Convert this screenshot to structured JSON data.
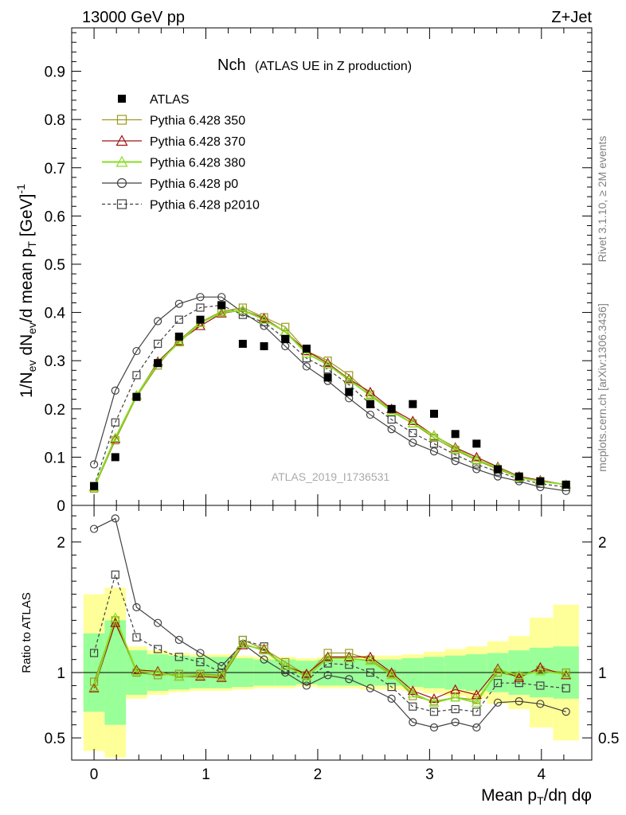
{
  "header": {
    "left": "13000 GeV pp",
    "right": "Z+Jet"
  },
  "side_labels": {
    "rivet": "Rivet 3.1.10, ≥ 2M events",
    "mcplots": "mcplots.cern.ch [arXiv:1306.3436]"
  },
  "chart_data": {
    "type": "line",
    "title": "Nch",
    "subtitle": "(ATLAS UE in Z production)",
    "watermark": "ATLAS_2019_I1736531",
    "xlabel": "Mean p_T/dη dφ",
    "ylabel": "1/N_ev dN_ev/d mean p_T [GeV]^-1",
    "ratio_ylabel": "Ratio to ATLAS",
    "xlim": [
      -0.2,
      4.45
    ],
    "ylim": [
      0,
      0.99
    ],
    "ratio_ylim": [
      0.33,
      2.28
    ],
    "x_ticks": [
      0,
      1,
      2,
      3,
      4
    ],
    "y_ticks": [
      0,
      0.1,
      0.2,
      0.3,
      0.4,
      0.5,
      0.6,
      0.7,
      0.8,
      0.9
    ],
    "y_tick_labels": [
      "0",
      "0.1",
      "0.2",
      "0.3",
      "0.4",
      "0.5",
      "0.6",
      "0.7",
      "0.8",
      "0.9"
    ],
    "ratio_ticks": [
      0.5,
      1,
      2
    ],
    "ratio_tick_labels": [
      "0.5",
      "1",
      "2"
    ],
    "legend_placement": "top-left",
    "x": [
      0.0,
      0.19,
      0.38,
      0.57,
      0.76,
      0.95,
      1.14,
      1.33,
      1.52,
      1.71,
      1.9,
      2.09,
      2.28,
      2.47,
      2.66,
      2.85,
      3.04,
      3.23,
      3.42,
      3.61,
      3.8,
      3.99,
      4.22
    ],
    "data": {
      "name": "ATLAS",
      "values": [
        0.04,
        0.1,
        0.225,
        0.295,
        0.35,
        0.385,
        0.415,
        0.335,
        0.33,
        0.345,
        0.325,
        0.265,
        0.235,
        0.21,
        0.2,
        0.21,
        0.19,
        0.148,
        0.128,
        0.075,
        0.06,
        0.05,
        0.043
      ]
    },
    "band": {
      "inner": [
        0.3,
        0.4,
        0.17,
        0.14,
        0.13,
        0.12,
        0.12,
        0.11,
        0.1,
        0.1,
        0.09,
        0.1,
        0.1,
        0.1,
        0.1,
        0.11,
        0.12,
        0.13,
        0.14,
        0.15,
        0.17,
        0.19,
        0.2
      ],
      "outer": [
        0.6,
        0.65,
        0.2,
        0.17,
        0.15,
        0.14,
        0.14,
        0.13,
        0.12,
        0.12,
        0.11,
        0.12,
        0.12,
        0.13,
        0.13,
        0.14,
        0.16,
        0.18,
        0.2,
        0.24,
        0.28,
        0.42,
        0.52
      ]
    },
    "series": [
      {
        "name": "Pythia 6.428 350",
        "color": "#9a9a20",
        "marker": "square-open",
        "dashed": false,
        "values": [
          0.035,
          0.135,
          0.225,
          0.29,
          0.342,
          0.38,
          0.402,
          0.41,
          0.39,
          0.37,
          0.32,
          0.3,
          0.27,
          0.23,
          0.198,
          0.17,
          0.14,
          0.115,
          0.093,
          0.075,
          0.058,
          0.05,
          0.043
        ],
        "ratio": [
          0.93,
          1.4,
          1.0,
          0.98,
          0.99,
          0.99,
          0.98,
          1.25,
          1.18,
          1.08,
          0.98,
          1.15,
          1.15,
          1.1,
          0.99,
          0.82,
          0.78,
          0.81,
          0.79,
          1.0,
          0.97,
          1.02,
          1.0
        ]
      },
      {
        "name": "Pythia 6.428 370",
        "color": "#a01010",
        "marker": "triangle-open",
        "dashed": false,
        "values": [
          0.038,
          0.138,
          0.228,
          0.298,
          0.34,
          0.372,
          0.398,
          0.405,
          0.388,
          0.36,
          0.32,
          0.295,
          0.262,
          0.235,
          0.2,
          0.175,
          0.145,
          0.12,
          0.1,
          0.08,
          0.06,
          0.052,
          0.043
        ],
        "ratio": [
          0.88,
          1.38,
          1.02,
          1.01,
          0.97,
          0.97,
          0.96,
          1.21,
          1.18,
          1.05,
          0.99,
          1.12,
          1.12,
          1.12,
          1.0,
          0.86,
          0.8,
          0.87,
          0.83,
          1.03,
          0.96,
          1.04,
          0.98
        ]
      },
      {
        "name": "Pythia 6.428 380",
        "color": "#88dd22",
        "marker": "triangle-open",
        "dashed": false,
        "values": [
          0.038,
          0.14,
          0.228,
          0.295,
          0.338,
          0.378,
          0.4,
          0.405,
          0.385,
          0.36,
          0.315,
          0.292,
          0.26,
          0.228,
          0.195,
          0.17,
          0.145,
          0.118,
          0.095,
          0.078,
          0.058,
          0.05,
          0.043
        ],
        "ratio": [
          0.89,
          1.42,
          1.01,
          1.0,
          0.97,
          0.98,
          0.97,
          1.22,
          1.17,
          1.05,
          0.97,
          1.11,
          1.11,
          1.09,
          0.98,
          0.84,
          0.77,
          0.81,
          0.77,
          1.02,
          0.98,
          1.01,
          0.99
        ]
      },
      {
        "name": "Pythia 6.428 p0",
        "color": "#404040",
        "marker": "circle-open",
        "dashed": false,
        "values": [
          0.085,
          0.238,
          0.32,
          0.382,
          0.418,
          0.432,
          0.432,
          0.4,
          0.372,
          0.33,
          0.288,
          0.258,
          0.222,
          0.188,
          0.158,
          0.13,
          0.112,
          0.092,
          0.075,
          0.06,
          0.05,
          0.038,
          0.03
        ],
        "ratio": [
          2.1,
          2.18,
          1.5,
          1.38,
          1.25,
          1.15,
          1.05,
          1.22,
          1.1,
          1.0,
          0.9,
          0.98,
          0.95,
          0.88,
          0.8,
          0.62,
          0.58,
          0.62,
          0.58,
          0.77,
          0.78,
          0.76,
          0.7
        ]
      },
      {
        "name": "Pythia 6.428 p2010",
        "color": "#404040",
        "marker": "square-open",
        "dashed": true,
        "values": [
          0.04,
          0.172,
          0.27,
          0.335,
          0.385,
          0.41,
          0.415,
          0.395,
          0.38,
          0.345,
          0.305,
          0.282,
          0.25,
          0.21,
          0.178,
          0.15,
          0.128,
          0.105,
          0.085,
          0.07,
          0.055,
          0.045,
          0.038
        ],
        "ratio": [
          1.15,
          1.75,
          1.27,
          1.18,
          1.12,
          1.08,
          1.0,
          1.25,
          1.2,
          1.02,
          0.94,
          1.07,
          1.06,
          1.0,
          0.89,
          0.74,
          0.7,
          0.72,
          0.7,
          0.92,
          0.92,
          0.9,
          0.88
        ]
      }
    ]
  }
}
